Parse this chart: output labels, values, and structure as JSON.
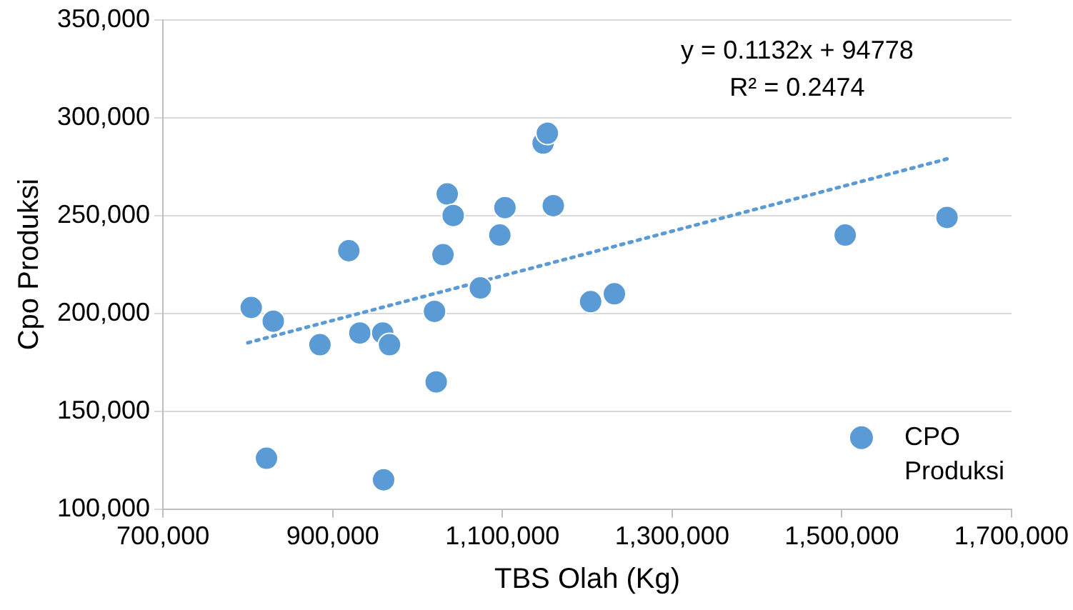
{
  "chart_data": {
    "type": "scatter",
    "xlabel": "TBS Olah (Kg)",
    "ylabel": "Cpo Produksi",
    "annotations": [
      "y = 0.1132x + 94778",
      "R² = 0.2474"
    ],
    "series": [
      {
        "name": "CPO Produksi",
        "color": "#5b9bd5",
        "x": [
          804000,
          830000,
          822000,
          885000,
          919000,
          932000,
          959000,
          967000,
          960000,
          1020000,
          1022000,
          1030000,
          1035000,
          1042000,
          1074000,
          1097000,
          1103000,
          1148000,
          1153000,
          1160000,
          1204000,
          1232000,
          1504000,
          1624000
        ],
        "values": [
          203000,
          196000,
          126000,
          184000,
          232000,
          190000,
          190000,
          184000,
          115000,
          201000,
          165000,
          230000,
          261000,
          250000,
          213000,
          240000,
          254000,
          287000,
          292000,
          255000,
          206000,
          210000,
          240000,
          249000
        ]
      },
      {
        "type": "line",
        "color": "#5b9bd5",
        "line_style": "dotted",
        "marker": "none",
        "x": [
          800000,
          1625000
        ],
        "values": [
          185000,
          279000
        ]
      }
    ],
    "xlim": [
      700000,
      1700000
    ],
    "xticks": [
      {
        "value": 700000,
        "label": "700,000"
      },
      {
        "value": 900000,
        "label": "900,000"
      },
      {
        "value": 1100000,
        "label": "1,100,000"
      },
      {
        "value": 1300000,
        "label": "1,300,000"
      },
      {
        "value": 1500000,
        "label": "1,500,000"
      },
      {
        "value": 1700000,
        "label": "1,700,000"
      }
    ],
    "ylim": [
      100000,
      350000
    ],
    "yticks": [
      {
        "value": 100000,
        "label": "100,000"
      },
      {
        "value": 150000,
        "label": "150,000"
      },
      {
        "value": 200000,
        "label": "200,000"
      },
      {
        "value": 250000,
        "label": "250,000"
      },
      {
        "value": 300000,
        "label": "300,000"
      },
      {
        "value": 350000,
        "label": "350,000"
      }
    ],
    "grid": "y",
    "legend": "bottom right",
    "marker": "circle"
  }
}
